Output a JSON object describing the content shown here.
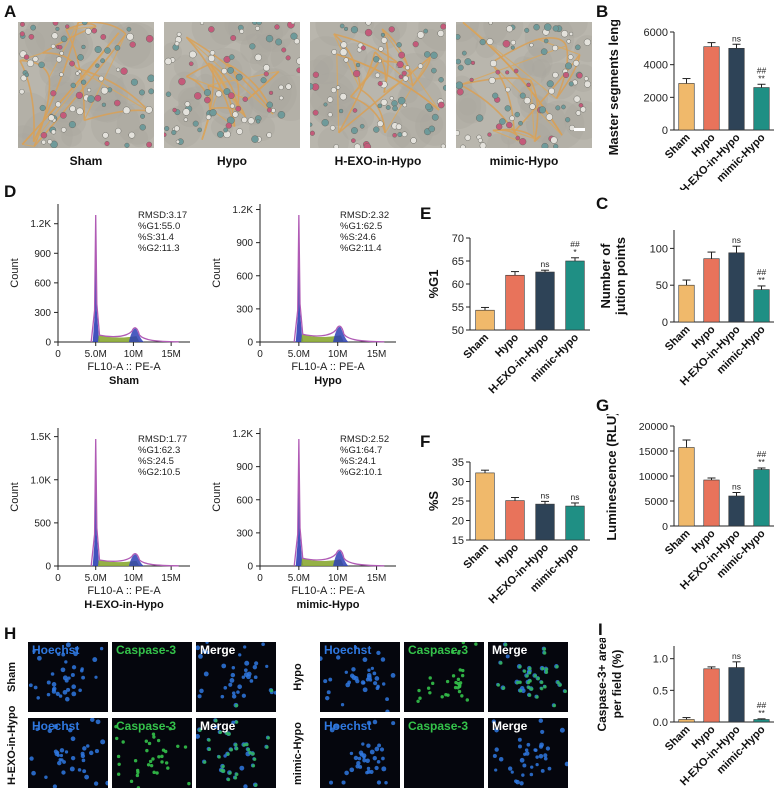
{
  "panel_letters": {
    "A": "A",
    "B": "B",
    "C": "C",
    "D": "D",
    "E": "E",
    "F": "F",
    "G": "G",
    "H": "H",
    "I": "I"
  },
  "panel_a": {
    "labels": [
      "Sham",
      "Hypo",
      "H-EXO-in-Hypo",
      "mimic-Hypo"
    ]
  },
  "colors": {
    "sham": "#f0b96b",
    "hypo": "#e8735b",
    "hexo": "#2e4357",
    "mimic": "#1f8f84",
    "hist_purple": "#b05bb5",
    "hist_blue": "#2d3fb5",
    "hist_green": "#8aa832",
    "hoechst": "#2f78e0",
    "caspase": "#34c24a"
  },
  "flow": {
    "xlabel": "FL10-A :: PE-A",
    "ylabel": "Count",
    "xticks": [
      "0",
      "5.0M",
      "10M",
      "15M"
    ],
    "plots": [
      {
        "name": "Sham",
        "yticks": [
          "0",
          "300",
          "600",
          "900",
          "1.2K"
        ],
        "ymax": 1400,
        "stats": [
          "RMSD:3.17",
          "%G1:55.0",
          "%S:31.4",
          "%G2:11.3"
        ]
      },
      {
        "name": "Hypo",
        "yticks": [
          "0",
          "300",
          "600",
          "900",
          "1.2K"
        ],
        "ymax": 1250,
        "stats": [
          "RMSD:2.32",
          "%G1:62.5",
          "%S:24.6",
          "%G2:11.4"
        ]
      },
      {
        "name": "H-EXO-in-Hypo",
        "yticks": [
          "0",
          "500",
          "1.0K",
          "1.5K"
        ],
        "ymax": 1600,
        "stats": [
          "RMSD:1.77",
          "%G1:62.3",
          "%S:24.5",
          "%G2:10.5"
        ]
      },
      {
        "name": "mimic-Hypo",
        "yticks": [
          "0",
          "300",
          "600",
          "900",
          "1.2K"
        ],
        "ymax": 1250,
        "stats": [
          "RMSD:2.52",
          "%G1:64.7",
          "%S:24.1",
          "%G2:10.1"
        ]
      }
    ]
  },
  "chart_data": [
    {
      "panel": "B",
      "type": "bar",
      "categories": [
        "Sham",
        "Hypo",
        "H-EXO-in-Hypo",
        "mimic-Hypo"
      ],
      "values": [
        2850,
        5100,
        5000,
        2600
      ],
      "errors": [
        300,
        250,
        250,
        200
      ],
      "ylabel": "Master segments lenght",
      "ylim": [
        0,
        6000
      ],
      "yticks": [
        0,
        2000,
        4000,
        6000
      ],
      "annotations": [
        "",
        "",
        "ns",
        "##\n**"
      ]
    },
    {
      "panel": "C",
      "type": "bar",
      "categories": [
        "Sham",
        "Hypo",
        "H-EXO-in-Hypo",
        "mimic-Hypo"
      ],
      "values": [
        50,
        86,
        94,
        44
      ],
      "errors": [
        7,
        9,
        9,
        5
      ],
      "ylabel": "Number of\njution points",
      "ylim": [
        0,
        125
      ],
      "yticks": [
        0,
        50,
        100
      ],
      "annotations": [
        "",
        "",
        "ns",
        "##\n**"
      ]
    },
    {
      "panel": "E",
      "type": "bar",
      "categories": [
        "Sham",
        "Hypo",
        "H-EXO-in-Hypo",
        "mimic-Hypo"
      ],
      "values": [
        54.3,
        61.9,
        62.6,
        65.0
      ],
      "errors": [
        0.6,
        0.8,
        0.4,
        0.7
      ],
      "ylabel": "%G1",
      "ylim": [
        50,
        70
      ],
      "yticks": [
        50,
        55,
        60,
        65,
        70
      ],
      "annotations": [
        "",
        "",
        "ns",
        "##\n*"
      ]
    },
    {
      "panel": "F",
      "type": "bar",
      "categories": [
        "Sham",
        "Hypo",
        "H-EXO-in-Hypo",
        "mimic-Hypo"
      ],
      "values": [
        32.2,
        25.1,
        24.2,
        23.7
      ],
      "errors": [
        0.7,
        0.8,
        0.7,
        0.8
      ],
      "ylabel": "%S",
      "ylim": [
        15,
        35
      ],
      "yticks": [
        15,
        20,
        25,
        30,
        35
      ],
      "annotations": [
        "",
        "",
        "ns",
        "ns"
      ]
    },
    {
      "panel": "G",
      "type": "bar",
      "categories": [
        "Sham",
        "Hypo",
        "H-EXO-in-Hypo",
        "mimic-Hypo"
      ],
      "values": [
        15700,
        9200,
        6000,
        11300
      ],
      "errors": [
        1500,
        400,
        700,
        300
      ],
      "ylabel": "Luminescence (RLU)",
      "ylim": [
        0,
        20000
      ],
      "yticks": [
        0,
        5000,
        10000,
        15000,
        20000
      ],
      "annotations": [
        "",
        "",
        "ns",
        "##\n**"
      ]
    },
    {
      "panel": "I",
      "type": "bar",
      "categories": [
        "Sham",
        "Hypo",
        "H-EXO-in-Hypo",
        "mimic-Hypo"
      ],
      "values": [
        0.04,
        0.84,
        0.86,
        0.04
      ],
      "errors": [
        0.03,
        0.03,
        0.09,
        0.01
      ],
      "ylabel": "Caspase-3+ area\nper field (%)",
      "ylim": [
        0,
        1.2
      ],
      "yticks": [
        0.0,
        0.5,
        1.0
      ],
      "annotations": [
        "",
        "",
        "ns",
        "##\n**"
      ]
    }
  ],
  "panel_h": {
    "row_labels": [
      "Sham",
      "Hypo",
      "H-EXO-in-Hypo",
      "mimic-Hypo"
    ],
    "titles": [
      "Hoechst",
      "Caspase-3",
      "Merge"
    ]
  }
}
